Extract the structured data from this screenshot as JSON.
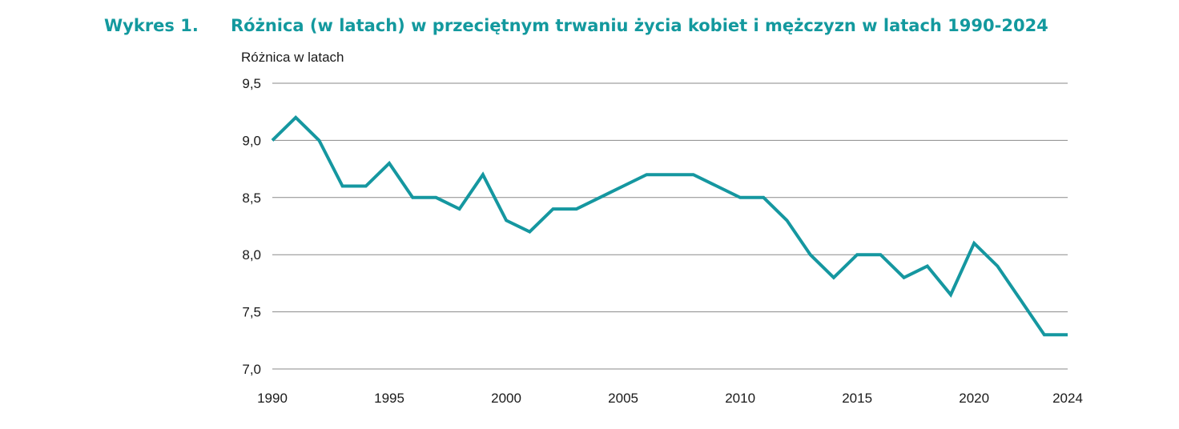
{
  "header": {
    "figure_label": "Wykres 1.",
    "title": "Różnica (w latach) w przeciętnym trwaniu życia kobiet i mężczyzn w latach 1990-2024"
  },
  "colors": {
    "accent": "#13999e",
    "line": "#1597a0",
    "grid": "#8a8a8a"
  },
  "chart_data": {
    "type": "line",
    "title": "Różnica (w latach) w przeciętnym trwaniu życia kobiet i mężczyzn w latach 1990-2024",
    "ylabel": "Różnica w latach",
    "xlabel": "",
    "xlim": [
      1990,
      2024
    ],
    "ylim": [
      7.0,
      9.5
    ],
    "x_ticks": [
      1990,
      1995,
      2000,
      2005,
      2010,
      2015,
      2020,
      2024
    ],
    "x_tick_labels": [
      "1990",
      "1995",
      "2000",
      "2005",
      "2010",
      "2015",
      "2020",
      "2024"
    ],
    "y_ticks": [
      7.0,
      7.5,
      8.0,
      8.5,
      9.0,
      9.5
    ],
    "y_tick_labels": [
      "7,0",
      "7,5",
      "8,0",
      "8,5",
      "9,0",
      "9,5"
    ],
    "grid": "horizontal",
    "legend": "none",
    "series": [
      {
        "x": [
          1990,
          1991,
          1992,
          1993,
          1994,
          1995,
          1996,
          1997,
          1998,
          1999,
          2000,
          2001,
          2002,
          2003,
          2004,
          2005,
          2006,
          2007,
          2008,
          2009,
          2010,
          2011,
          2012,
          2013,
          2014,
          2015,
          2016,
          2017,
          2018,
          2019,
          2020,
          2021,
          2022,
          2023,
          2024
        ],
        "values": [
          9.0,
          9.2,
          9.0,
          8.6,
          8.6,
          8.8,
          8.5,
          8.5,
          8.4,
          8.7,
          8.3,
          8.2,
          8.4,
          8.4,
          8.5,
          8.6,
          8.7,
          8.7,
          8.7,
          8.6,
          8.5,
          8.5,
          8.3,
          8.0,
          7.8,
          8.0,
          8.0,
          7.8,
          7.9,
          7.65,
          8.1,
          7.9,
          7.6,
          7.3,
          7.3
        ]
      }
    ]
  }
}
